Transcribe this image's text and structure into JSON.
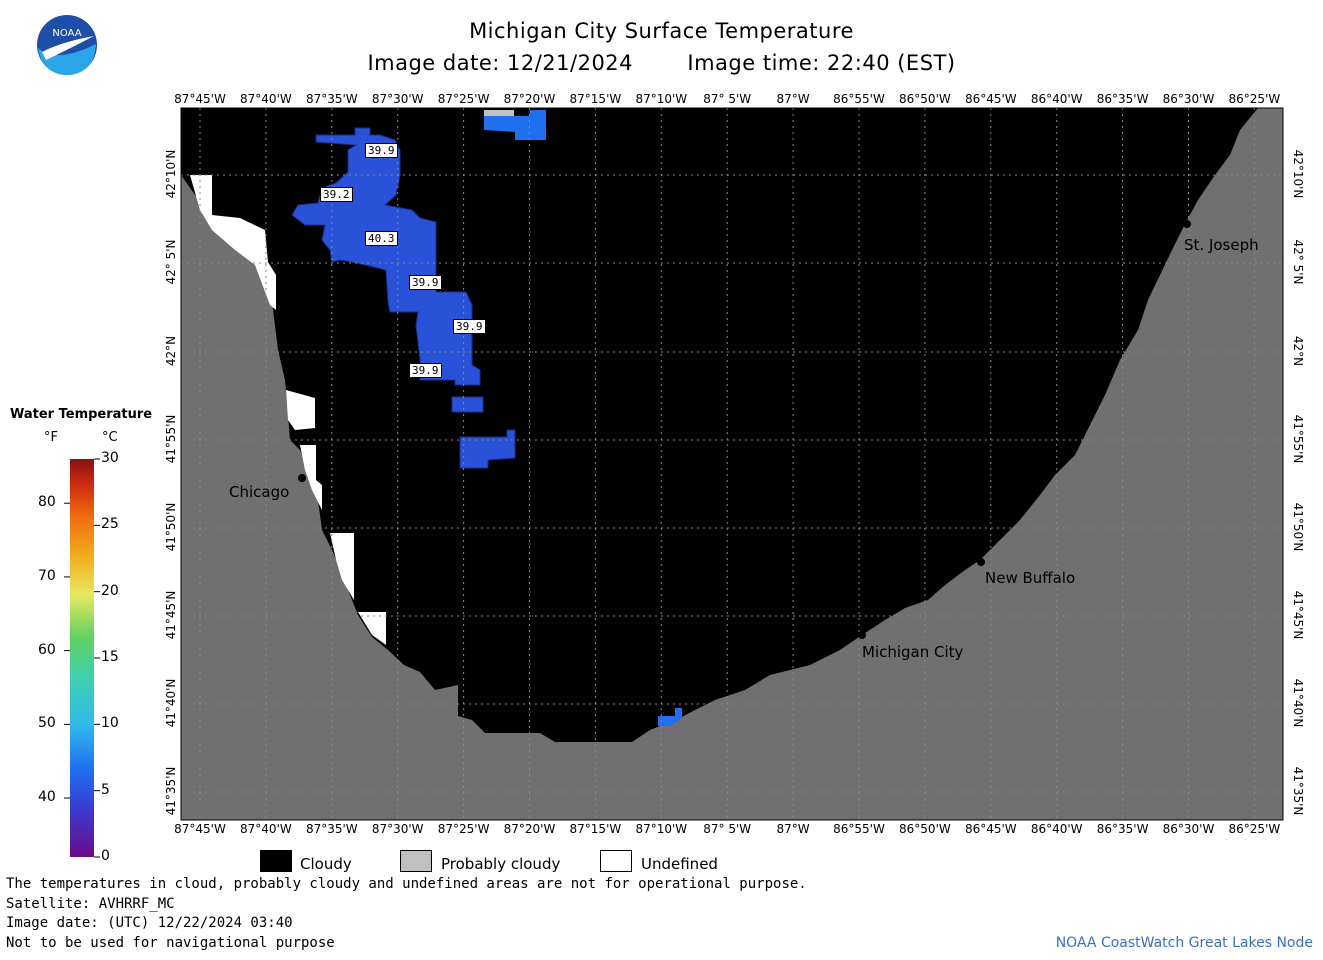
{
  "header": {
    "title": "Michigan City Surface Temperature",
    "image_date_label": "Image date: 12/21/2024",
    "image_time_label": "Image time: 22:40 (EST)"
  },
  "logo": {
    "text": "NOAA",
    "icon": "noaa-logo"
  },
  "longitude_ticks": [
    "87°45'W",
    "87°40'W",
    "87°35'W",
    "87°30'W",
    "87°25'W",
    "87°20'W",
    "87°15'W",
    "87°10'W",
    "87° 5'W",
    "87°W",
    "86°55'W",
    "86°50'W",
    "86°45'W",
    "86°40'W",
    "86°35'W",
    "86°30'W",
    "86°25'W"
  ],
  "latitude_ticks": [
    "42°10'N",
    "42° 5'N",
    "42°N",
    "41°55'N",
    "41°50'N",
    "41°45'N",
    "41°40'N",
    "41°35'N"
  ],
  "cities": [
    {
      "name": "Chicago"
    },
    {
      "name": "St. Joseph"
    },
    {
      "name": "New Buffalo"
    },
    {
      "name": "Michigan City"
    }
  ],
  "temperature_labels": [
    "39.9",
    "39.2",
    "40.3",
    "39.9",
    "39.9",
    "39.9"
  ],
  "legend": {
    "title": "Water Temperature",
    "unit_f": "°F",
    "unit_c": "°C",
    "f_ticks": [
      "80",
      "70",
      "60",
      "50",
      "40"
    ],
    "c_ticks": [
      "30",
      "25",
      "20",
      "15",
      "10",
      "5",
      "0"
    ]
  },
  "key": {
    "cloudy": "Cloudy",
    "probably_cloudy": "Probably cloudy",
    "undefined": "Undefined"
  },
  "footer": {
    "note": "The temperatures in cloud, probably cloudy and undefined areas are not for operational purpose.",
    "satellite": "Satellite: AVHRRF_MC",
    "utc_date": "Image date: (UTC) 12/22/2024  03:40",
    "nav_warning": "Not to be used for navigational purpose",
    "credit": "NOAA CoastWatch Great Lakes Node"
  },
  "colors": {
    "land": "#707070",
    "cloud": "#000000",
    "undefined": "#ffffff",
    "probably_cloudy": "#c0c0c0",
    "water_blue": "#2a52d8",
    "water_light": "#1f6ff0"
  }
}
